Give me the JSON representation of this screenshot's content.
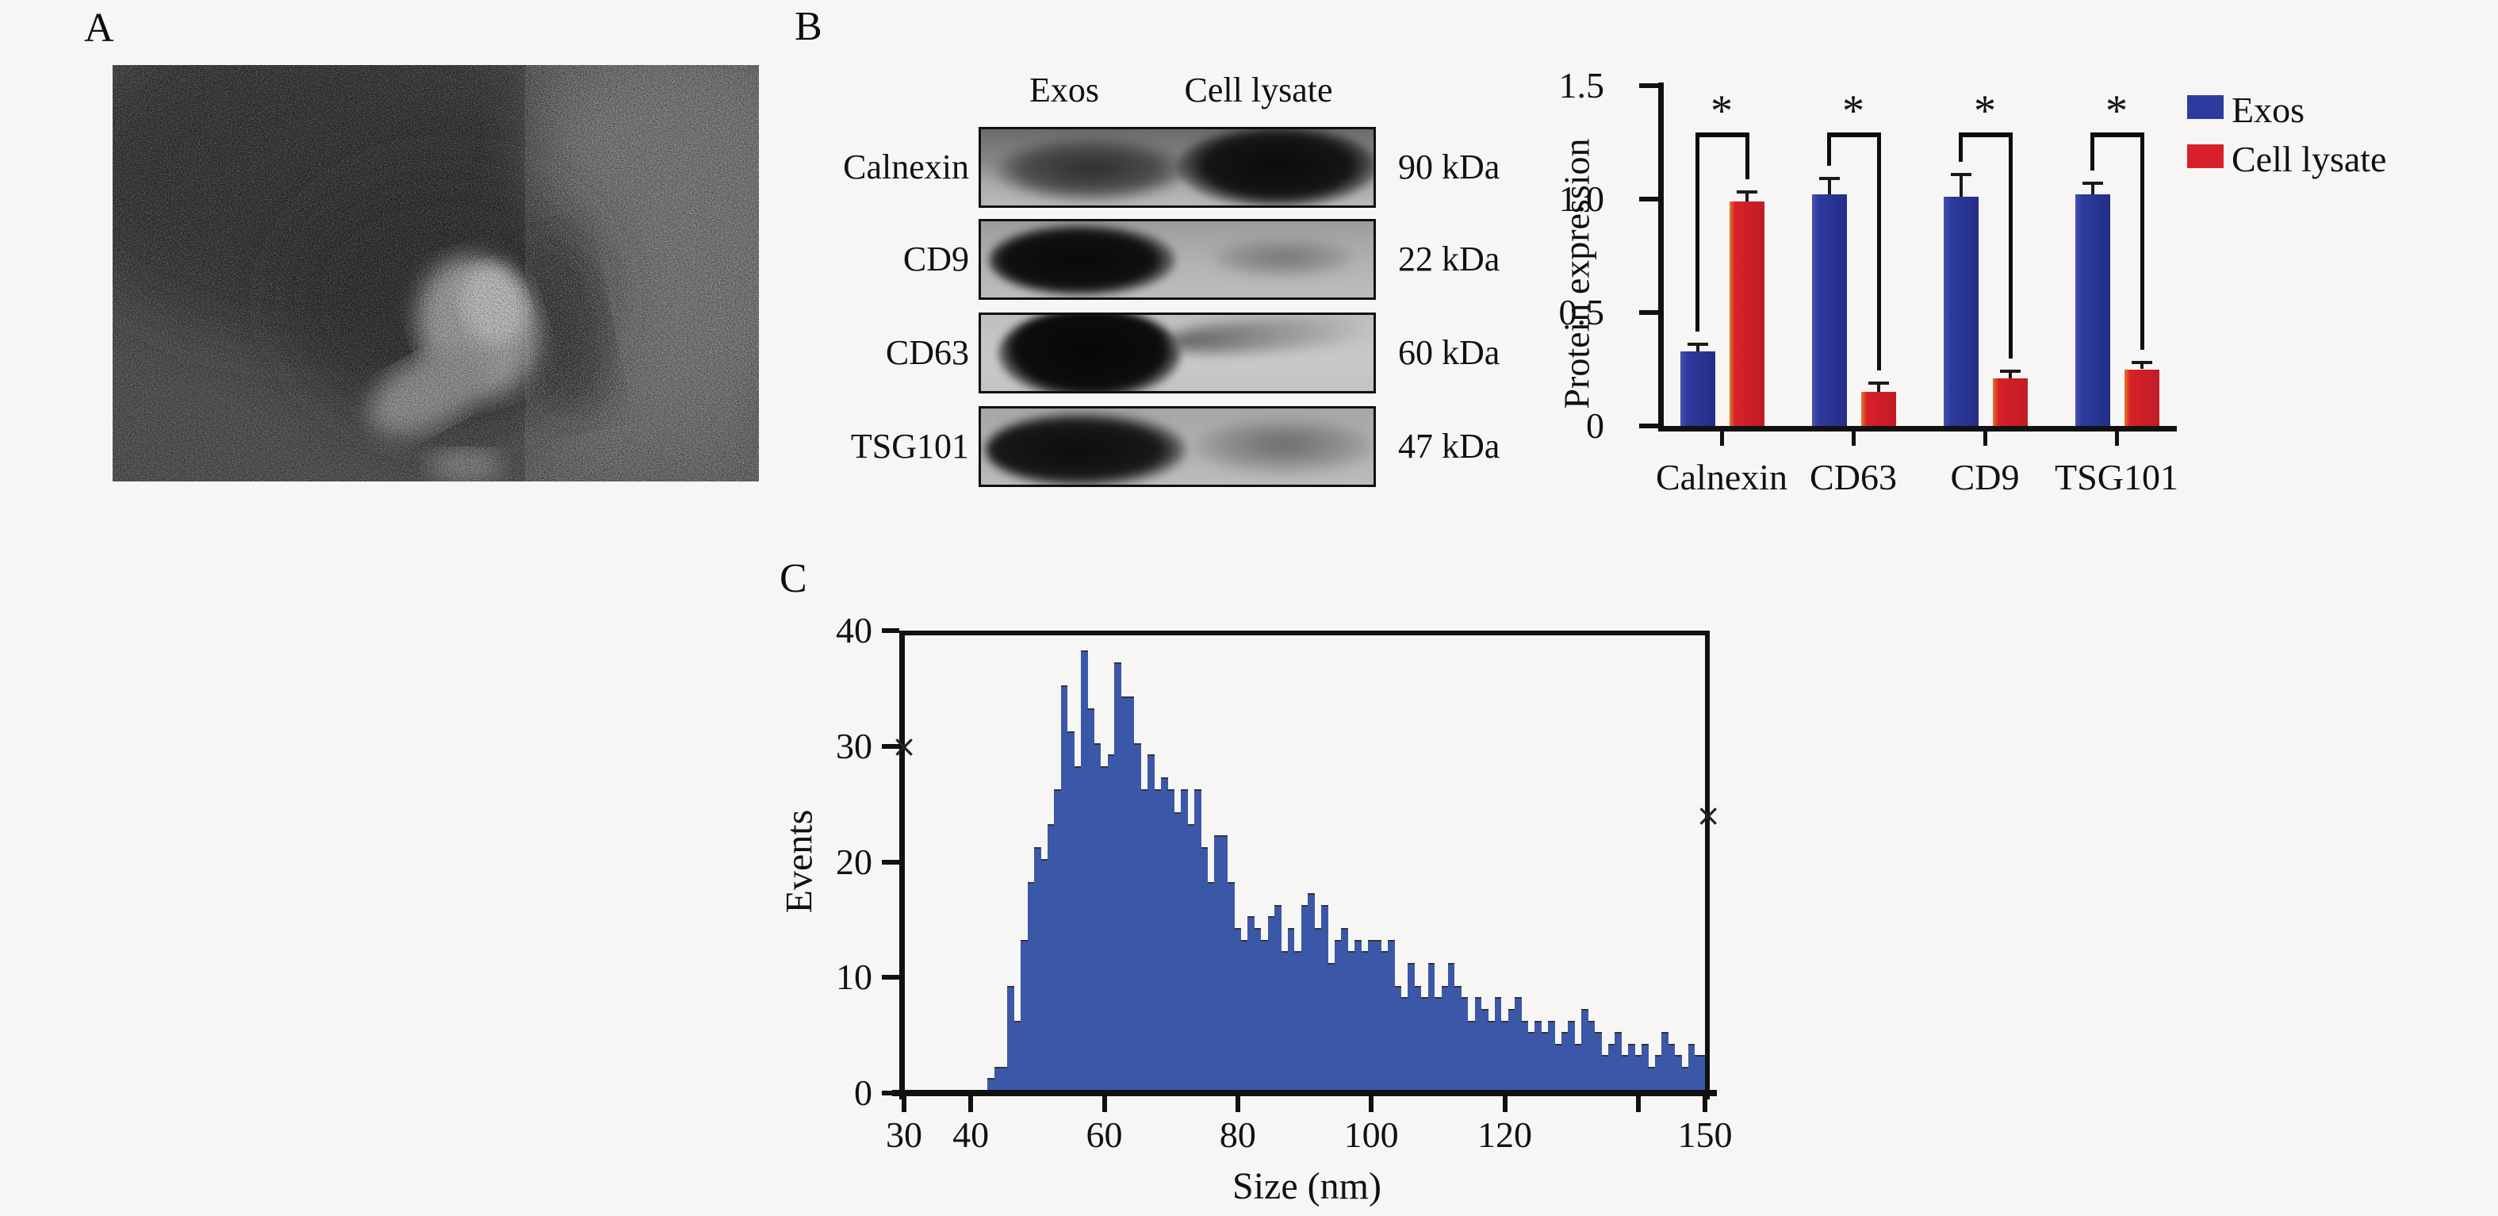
{
  "colors": {
    "background": "#f7f6f4",
    "exos_blue": "#2d3a9e",
    "lysate_red": "#d8202a",
    "histogram_blue": "#3b58a8",
    "axis": "#111111"
  },
  "panels": {
    "a_label": "A",
    "b_label": "B",
    "c_label": "C"
  },
  "panel_a": {
    "image_alt": "electron-micrograph-of-exosome"
  },
  "panel_b": {
    "lane_headers": [
      "Exos",
      "Cell lysate"
    ],
    "rows": [
      {
        "protein": "Calnexin",
        "weight": "90 kDa"
      },
      {
        "protein": "CD9",
        "weight": "22 kDa"
      },
      {
        "protein": "CD63",
        "weight": "60 kDa"
      },
      {
        "protein": "TSG101",
        "weight": "47 kDa"
      }
    ]
  },
  "chart_data": [
    {
      "id": "protein-expression-bar",
      "type": "bar",
      "ylabel": "Protein expression",
      "xlabel": "",
      "ylim": [
        0,
        1.5
      ],
      "yticks": [
        "0",
        "0.5",
        "1.0",
        "1.5"
      ],
      "ytick_values": [
        0,
        0.5,
        1.0,
        1.5
      ],
      "categories": [
        "Calnexin",
        "CD63",
        "CD9",
        "TSG101"
      ],
      "series": [
        {
          "name": "Exos",
          "color": "#2d3a9e",
          "values": [
            0.33,
            1.02,
            1.01,
            1.02
          ],
          "errors": [
            0.03,
            0.07,
            0.1,
            0.05
          ]
        },
        {
          "name": "Cell lysate",
          "color": "#d8202a",
          "values": [
            0.99,
            0.15,
            0.21,
            0.25
          ],
          "errors": [
            0.04,
            0.04,
            0.03,
            0.03
          ]
        }
      ],
      "significance": [
        "*",
        "*",
        "*",
        "*"
      ],
      "legend_position": "top-right",
      "grid": false
    },
    {
      "id": "size-distribution-histogram",
      "type": "bar",
      "xlabel": "Size (nm)",
      "ylabel": "Events",
      "xlim": [
        30,
        152
      ],
      "ylim": [
        0,
        40
      ],
      "xticks": [
        30,
        40,
        60,
        80,
        100,
        120,
        150
      ],
      "xticks_minor": [
        140
      ],
      "yticks": [
        0,
        10,
        20,
        30,
        40
      ],
      "bar_color": "#3b58a8",
      "bin_width_nm": 1,
      "x_start": 43,
      "values": [
        1,
        2,
        2,
        9,
        6,
        13,
        18,
        21,
        20,
        23,
        26,
        35,
        31,
        28,
        38,
        33,
        30,
        28,
        29,
        37,
        34,
        34,
        30,
        26,
        29,
        26,
        27,
        26,
        24,
        26,
        23,
        26,
        21,
        18,
        22,
        22,
        18,
        14,
        13,
        15,
        14,
        13,
        15,
        16,
        12,
        14,
        12,
        16,
        17,
        14,
        16,
        11,
        13,
        14,
        12,
        13,
        12,
        13,
        13,
        12,
        13,
        9,
        8,
        11,
        9,
        8,
        11,
        8,
        9,
        11,
        9,
        8,
        6,
        8,
        7,
        6,
        8,
        6,
        7,
        8,
        6,
        5,
        6,
        5,
        6,
        4,
        5,
        6,
        4,
        7,
        6,
        5,
        3,
        4,
        5,
        3,
        4,
        3,
        4,
        2,
        3,
        5,
        4,
        3,
        2,
        4,
        3,
        3,
        2
      ],
      "stray_marks": [
        {
          "glyph": "×",
          "x_nm": 30,
          "y_events": 30
        },
        {
          "glyph": "×",
          "x_nm": 150.5,
          "y_events": 24
        }
      ],
      "grid": false
    }
  ]
}
